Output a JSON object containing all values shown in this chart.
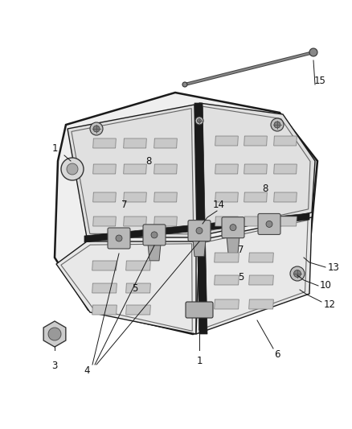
{
  "bg_color": "#ffffff",
  "line_color": "#1a1a1a",
  "fig_width": 4.38,
  "fig_height": 5.33,
  "dpi": 100,
  "panel_color": "#e8e8e8",
  "slot_color": "#d0d0d0",
  "dark_line": "#111111",
  "hinge_color": "#c8c8c8",
  "screw_color": "#b0b0b0"
}
